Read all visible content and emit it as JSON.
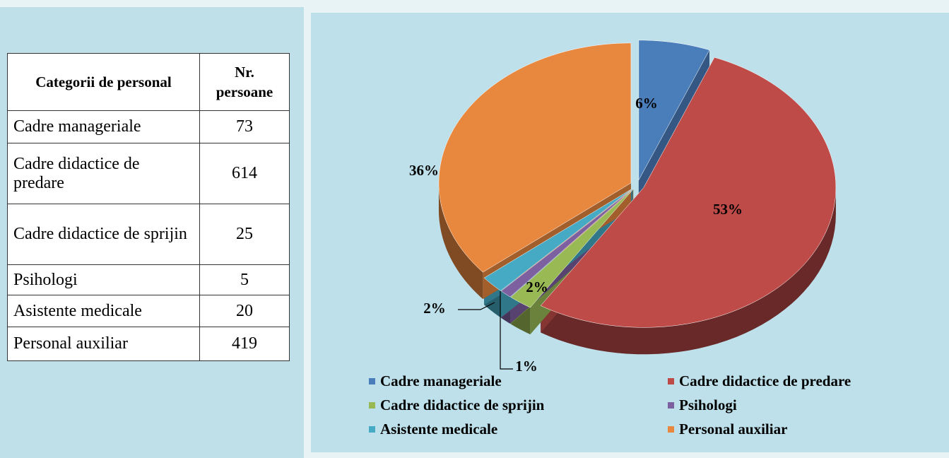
{
  "table": {
    "header": [
      "Categorii de personal",
      "Nr. persoane"
    ],
    "rows": [
      [
        "Cadre manageriale",
        73
      ],
      [
        "Cadre didactice de predare",
        614
      ],
      [
        "Cadre didactice de sprijin",
        25
      ],
      [
        "Psihologi",
        5
      ],
      [
        "Asistente medicale",
        20
      ],
      [
        "Personal auxiliar",
        419
      ]
    ]
  },
  "chart_data": {
    "type": "pie",
    "categories": [
      "Cadre manageriale",
      "Cadre didactice de predare",
      "Cadre didactice de sprijin",
      "Psihologi",
      "Asistente medicale",
      "Personal auxiliar"
    ],
    "values": [
      6,
      53,
      2,
      1,
      2,
      36
    ],
    "value_labels": [
      "6%",
      "53%",
      "2%",
      "1%",
      "2%",
      "36%"
    ],
    "colors": [
      "#4a7ebb",
      "#be4b48",
      "#98b954",
      "#7d60a0",
      "#46aac5",
      "#e8873e"
    ],
    "legend": "bottom"
  }
}
